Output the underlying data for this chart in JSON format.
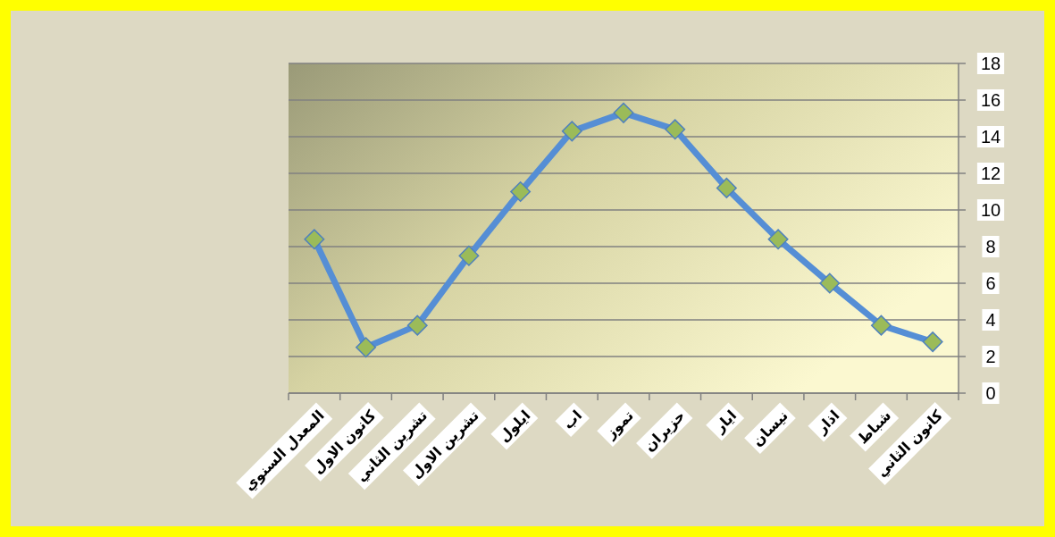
{
  "chart_data": {
    "type": "line",
    "categories": [
      "المعدل  السنوي",
      "كانون الاول",
      "تشرين الثاني",
      "تشرين الاول",
      "ايلول",
      "اب",
      "تموز",
      "حزيران",
      "ايار",
      "نيسان",
      "اذار",
      "شباط",
      "كانون الثاني"
    ],
    "series": [
      {
        "color": "#558ed5",
        "values": [
          8.4,
          2.5,
          3.7,
          7.5,
          11.0,
          14.3,
          15.3,
          14.4,
          11.2,
          8.4,
          6.0,
          3.7,
          2.8
        ]
      }
    ],
    "ylim": [
      0,
      18
    ],
    "yticks": [
      0,
      2,
      4,
      6,
      8,
      10,
      12,
      14,
      16,
      18
    ],
    "grid": "y",
    "marker": "diamond"
  }
}
